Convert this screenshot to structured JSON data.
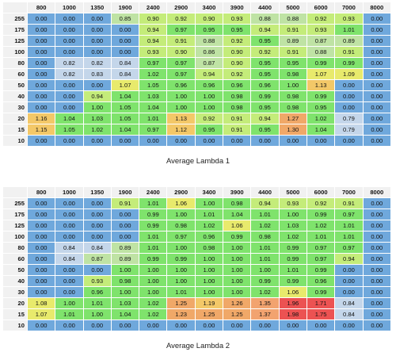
{
  "panels": [
    {
      "caption": "Average Lambda 1",
      "columns": [
        "800",
        "1000",
        "1350",
        "1900",
        "2400",
        "2900",
        "3400",
        "3900",
        "4400",
        "5000",
        "6000",
        "7000",
        "8000"
      ],
      "rows": [
        {
          "label": "255",
          "values": [
            "0.00",
            "0.00",
            "0.00",
            "0.85",
            "0.90",
            "0.92",
            "0.90",
            "0.93",
            "0.88",
            "0.88",
            "0.92",
            "0.93",
            "0.00"
          ]
        },
        {
          "label": "175",
          "values": [
            "0.00",
            "0.00",
            "0.00",
            "0.00",
            "0.94",
            "0.97",
            "0.95",
            "0.95",
            "0.94",
            "0.91",
            "0.93",
            "1.01",
            "0.00"
          ]
        },
        {
          "label": "125",
          "values": [
            "0.00",
            "0.00",
            "0.00",
            "0.00",
            "0.94",
            "0.91",
            "0.88",
            "0.92",
            "0.95",
            "0.89",
            "0.87",
            "0.89",
            "0.00"
          ]
        },
        {
          "label": "100",
          "values": [
            "0.00",
            "0.00",
            "0.00",
            "0.00",
            "0.93",
            "0.90",
            "0.86",
            "0.90",
            "0.92",
            "0.91",
            "0.88",
            "0.91",
            "0.00"
          ]
        },
        {
          "label": "80",
          "values": [
            "0.00",
            "0.82",
            "0.82",
            "0.84",
            "0.97",
            "0.97",
            "0.87",
            "0.90",
            "0.95",
            "0.95",
            "0.99",
            "0.99",
            "0.00"
          ]
        },
        {
          "label": "60",
          "values": [
            "0.00",
            "0.82",
            "0.83",
            "0.84",
            "1.02",
            "0.97",
            "0.94",
            "0.92",
            "0.95",
            "0.98",
            "1.07",
            "1.09",
            "0.00"
          ]
        },
        {
          "label": "50",
          "values": [
            "0.00",
            "0.00",
            "0.00",
            "1.07",
            "1.05",
            "0.96",
            "0.96",
            "0.96",
            "0.96",
            "1.00",
            "1.13",
            "0.00",
            "0.00"
          ]
        },
        {
          "label": "40",
          "values": [
            "0.00",
            "0.00",
            "0.94",
            "1.04",
            "1.03",
            "1.00",
            "1.00",
            "0.98",
            "0.99",
            "0.98",
            "0.99",
            "0.00",
            "0.00"
          ]
        },
        {
          "label": "30",
          "values": [
            "0.00",
            "0.00",
            "1.00",
            "1.05",
            "1.04",
            "1.00",
            "1.00",
            "0.98",
            "0.95",
            "0.98",
            "0.95",
            "0.00",
            "0.00"
          ]
        },
        {
          "label": "20",
          "values": [
            "1.16",
            "1.04",
            "1.03",
            "1.05",
            "1.01",
            "1.13",
            "0.92",
            "0.91",
            "0.94",
            "1.27",
            "1.02",
            "0.79",
            "0.00"
          ]
        },
        {
          "label": "15",
          "values": [
            "1.15",
            "1.05",
            "1.02",
            "1.04",
            "0.97",
            "1.12",
            "0.95",
            "0.91",
            "0.95",
            "1.30",
            "1.04",
            "0.79",
            "0.00"
          ]
        },
        {
          "label": "10",
          "values": [
            "0.00",
            "0.00",
            "0.00",
            "0.00",
            "0.00",
            "0.00",
            "0.00",
            "0.00",
            "0.00",
            "0.00",
            "0.00",
            "0.00",
            "0.00"
          ]
        }
      ]
    },
    {
      "caption": "Average Lambda 2",
      "columns": [
        "800",
        "1000",
        "1350",
        "1900",
        "2400",
        "2900",
        "3400",
        "3900",
        "4400",
        "5000",
        "6000",
        "7000",
        "8000"
      ],
      "rows": [
        {
          "label": "255",
          "values": [
            "0.00",
            "0.00",
            "0.00",
            "0.91",
            "1.01",
            "1.06",
            "1.00",
            "0.98",
            "0.94",
            "0.93",
            "0.92",
            "0.91",
            "0.00"
          ]
        },
        {
          "label": "175",
          "values": [
            "0.00",
            "0.00",
            "0.00",
            "0.00",
            "0.99",
            "1.00",
            "1.01",
            "1.04",
            "1.01",
            "1.00",
            "0.99",
            "0.97",
            "0.00"
          ]
        },
        {
          "label": "125",
          "values": [
            "0.00",
            "0.00",
            "0.00",
            "0.00",
            "0.99",
            "0.98",
            "1.02",
            "1.06",
            "1.02",
            "1.03",
            "1.02",
            "1.01",
            "0.00"
          ]
        },
        {
          "label": "100",
          "values": [
            "0.00",
            "0.00",
            "0.00",
            "0.00",
            "1.01",
            "0.97",
            "0.96",
            "0.99",
            "0.98",
            "1.02",
            "1.01",
            "1.01",
            "0.00"
          ]
        },
        {
          "label": "80",
          "values": [
            "0.00",
            "0.84",
            "0.84",
            "0.89",
            "1.01",
            "1.00",
            "0.98",
            "1.00",
            "1.01",
            "0.99",
            "0.97",
            "0.97",
            "0.00"
          ]
        },
        {
          "label": "60",
          "values": [
            "0.00",
            "0.84",
            "0.87",
            "0.89",
            "0.99",
            "0.99",
            "1.00",
            "1.00",
            "1.01",
            "0.99",
            "0.97",
            "0.94",
            "0.00"
          ]
        },
        {
          "label": "50",
          "values": [
            "0.00",
            "0.00",
            "0.00",
            "1.00",
            "1.00",
            "1.00",
            "1.00",
            "1.00",
            "1.00",
            "1.01",
            "0.99",
            "0.00",
            "0.00"
          ]
        },
        {
          "label": "40",
          "values": [
            "0.00",
            "0.00",
            "0.93",
            "0.98",
            "1.00",
            "1.00",
            "1.00",
            "1.00",
            "0.99",
            "0.99",
            "0.96",
            "0.00",
            "0.00"
          ]
        },
        {
          "label": "30",
          "values": [
            "0.00",
            "0.00",
            "0.96",
            "1.00",
            "1.00",
            "1.01",
            "1.00",
            "1.00",
            "1.02",
            "1.06",
            "0.99",
            "0.00",
            "0.00"
          ]
        },
        {
          "label": "20",
          "values": [
            "1.08",
            "1.00",
            "1.01",
            "1.03",
            "1.02",
            "1.25",
            "1.19",
            "1.26",
            "1.35",
            "1.96",
            "1.71",
            "0.84",
            "0.00"
          ]
        },
        {
          "label": "15",
          "values": [
            "1.07",
            "1.01",
            "1.00",
            "1.04",
            "1.02",
            "1.23",
            "1.25",
            "1.25",
            "1.37",
            "1.98",
            "1.75",
            "0.84",
            "0.00"
          ]
        },
        {
          "label": "10",
          "values": [
            "0.00",
            "0.00",
            "0.00",
            "0.00",
            "0.00",
            "0.00",
            "0.00",
            "0.00",
            "0.00",
            "0.00",
            "0.00",
            "0.00",
            "0.00"
          ]
        }
      ]
    }
  ]
}
